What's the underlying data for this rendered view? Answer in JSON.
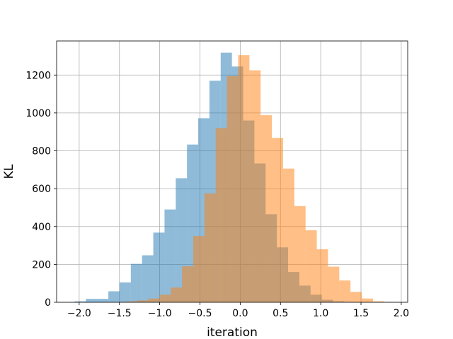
{
  "chart_data": {
    "type": "bar",
    "xlabel": "iteration",
    "ylabel": "KL",
    "xlim": [
      -2.28,
      2.08
    ],
    "ylim": [
      0,
      1380
    ],
    "grid": true,
    "xticks": [
      -2.0,
      -1.5,
      -1.0,
      -0.5,
      0.0,
      0.5,
      1.0,
      1.5,
      2.0
    ],
    "xtick_labels": [
      "−2.0",
      "−1.5",
      "−1.0",
      "−0.5",
      "0.0",
      "0.5",
      "1.0",
      "1.5",
      "2.0"
    ],
    "yticks": [
      0,
      200,
      400,
      600,
      800,
      1000,
      1200
    ],
    "ytick_labels": [
      "0",
      "200",
      "400",
      "600",
      "800",
      "1000",
      "1200"
    ],
    "series": [
      {
        "color": "#1f77b4",
        "opacity": 0.5,
        "bin_width": 0.1395,
        "bins": [
          {
            "x0": -2.056,
            "count": 5
          },
          {
            "x0": -1.9165,
            "count": 18
          },
          {
            "x0": -1.777,
            "count": 18
          },
          {
            "x0": -1.6375,
            "count": 58
          },
          {
            "x0": -1.498,
            "count": 105
          },
          {
            "x0": -1.3585,
            "count": 203
          },
          {
            "x0": -1.219,
            "count": 248
          },
          {
            "x0": -1.0795,
            "count": 368
          },
          {
            "x0": -0.94,
            "count": 490
          },
          {
            "x0": -0.8005,
            "count": 655
          },
          {
            "x0": -0.661,
            "count": 833
          },
          {
            "x0": -0.5215,
            "count": 972
          },
          {
            "x0": -0.382,
            "count": 1170
          },
          {
            "x0": -0.2425,
            "count": 1318
          },
          {
            "x0": -0.103,
            "count": 1245
          },
          {
            "x0": 0.0365,
            "count": 960
          },
          {
            "x0": 0.176,
            "count": 733
          },
          {
            "x0": 0.3155,
            "count": 465
          },
          {
            "x0": 0.455,
            "count": 290
          },
          {
            "x0": 0.5945,
            "count": 160
          },
          {
            "x0": 0.734,
            "count": 88
          },
          {
            "x0": 0.8735,
            "count": 40
          },
          {
            "x0": 1.013,
            "count": 13
          },
          {
            "x0": 1.1525,
            "count": 5
          },
          {
            "x0": 1.292,
            "count": 2
          }
        ]
      },
      {
        "color": "#ff7f0e",
        "opacity": 0.5,
        "bin_width": 0.1395,
        "bins": [
          {
            "x0": -1.56,
            "count": 2
          },
          {
            "x0": -1.4205,
            "count": 5
          },
          {
            "x0": -1.281,
            "count": 10
          },
          {
            "x0": -1.1415,
            "count": 20
          },
          {
            "x0": -1.002,
            "count": 40
          },
          {
            "x0": -0.8625,
            "count": 78
          },
          {
            "x0": -0.723,
            "count": 190
          },
          {
            "x0": -0.5835,
            "count": 350
          },
          {
            "x0": -0.444,
            "count": 575
          },
          {
            "x0": -0.3045,
            "count": 920
          },
          {
            "x0": -0.165,
            "count": 1195
          },
          {
            "x0": -0.0255,
            "count": 1305
          },
          {
            "x0": 0.114,
            "count": 1225
          },
          {
            "x0": 0.2535,
            "count": 988
          },
          {
            "x0": 0.393,
            "count": 868
          },
          {
            "x0": 0.5325,
            "count": 706
          },
          {
            "x0": 0.672,
            "count": 508
          },
          {
            "x0": 0.8115,
            "count": 380
          },
          {
            "x0": 0.951,
            "count": 280
          },
          {
            "x0": 1.0905,
            "count": 188
          },
          {
            "x0": 1.23,
            "count": 115
          },
          {
            "x0": 1.3695,
            "count": 55
          },
          {
            "x0": 1.509,
            "count": 20
          },
          {
            "x0": 1.6485,
            "count": 5
          },
          {
            "x0": 1.788,
            "count": 2
          }
        ]
      }
    ]
  }
}
